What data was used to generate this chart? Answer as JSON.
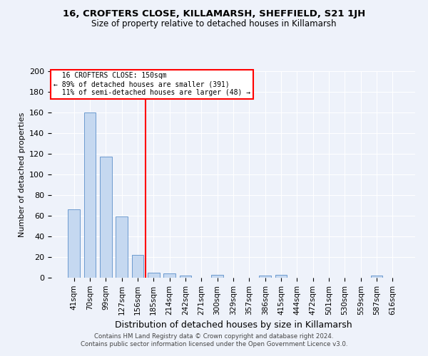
{
  "title": "16, CROFTERS CLOSE, KILLAMARSH, SHEFFIELD, S21 1JH",
  "subtitle": "Size of property relative to detached houses in Killamarsh",
  "xlabel": "Distribution of detached houses by size in Killamarsh",
  "ylabel": "Number of detached properties",
  "bar_color": "#c5d8f0",
  "bar_edge_color": "#5b8fc9",
  "background_color": "#eef2fa",
  "grid_color": "#ffffff",
  "categories": [
    "41sqm",
    "70sqm",
    "99sqm",
    "127sqm",
    "156sqm",
    "185sqm",
    "214sqm",
    "242sqm",
    "271sqm",
    "300sqm",
    "329sqm",
    "357sqm",
    "386sqm",
    "415sqm",
    "444sqm",
    "472sqm",
    "501sqm",
    "530sqm",
    "559sqm",
    "587sqm",
    "616sqm"
  ],
  "values": [
    66,
    160,
    117,
    59,
    22,
    5,
    4,
    2,
    0,
    3,
    0,
    0,
    2,
    3,
    0,
    0,
    0,
    0,
    0,
    2,
    0
  ],
  "property_label": "16 CROFTERS CLOSE: 150sqm",
  "pct_smaller": 89,
  "n_smaller": 391,
  "pct_larger": 11,
  "n_larger": 48,
  "red_line_x": 4.5,
  "footer_line1": "Contains HM Land Registry data © Crown copyright and database right 2024.",
  "footer_line2": "Contains public sector information licensed under the Open Government Licence v3.0.",
  "ylim": [
    0,
    200
  ],
  "yticks": [
    0,
    20,
    40,
    60,
    80,
    100,
    120,
    140,
    160,
    180,
    200
  ]
}
